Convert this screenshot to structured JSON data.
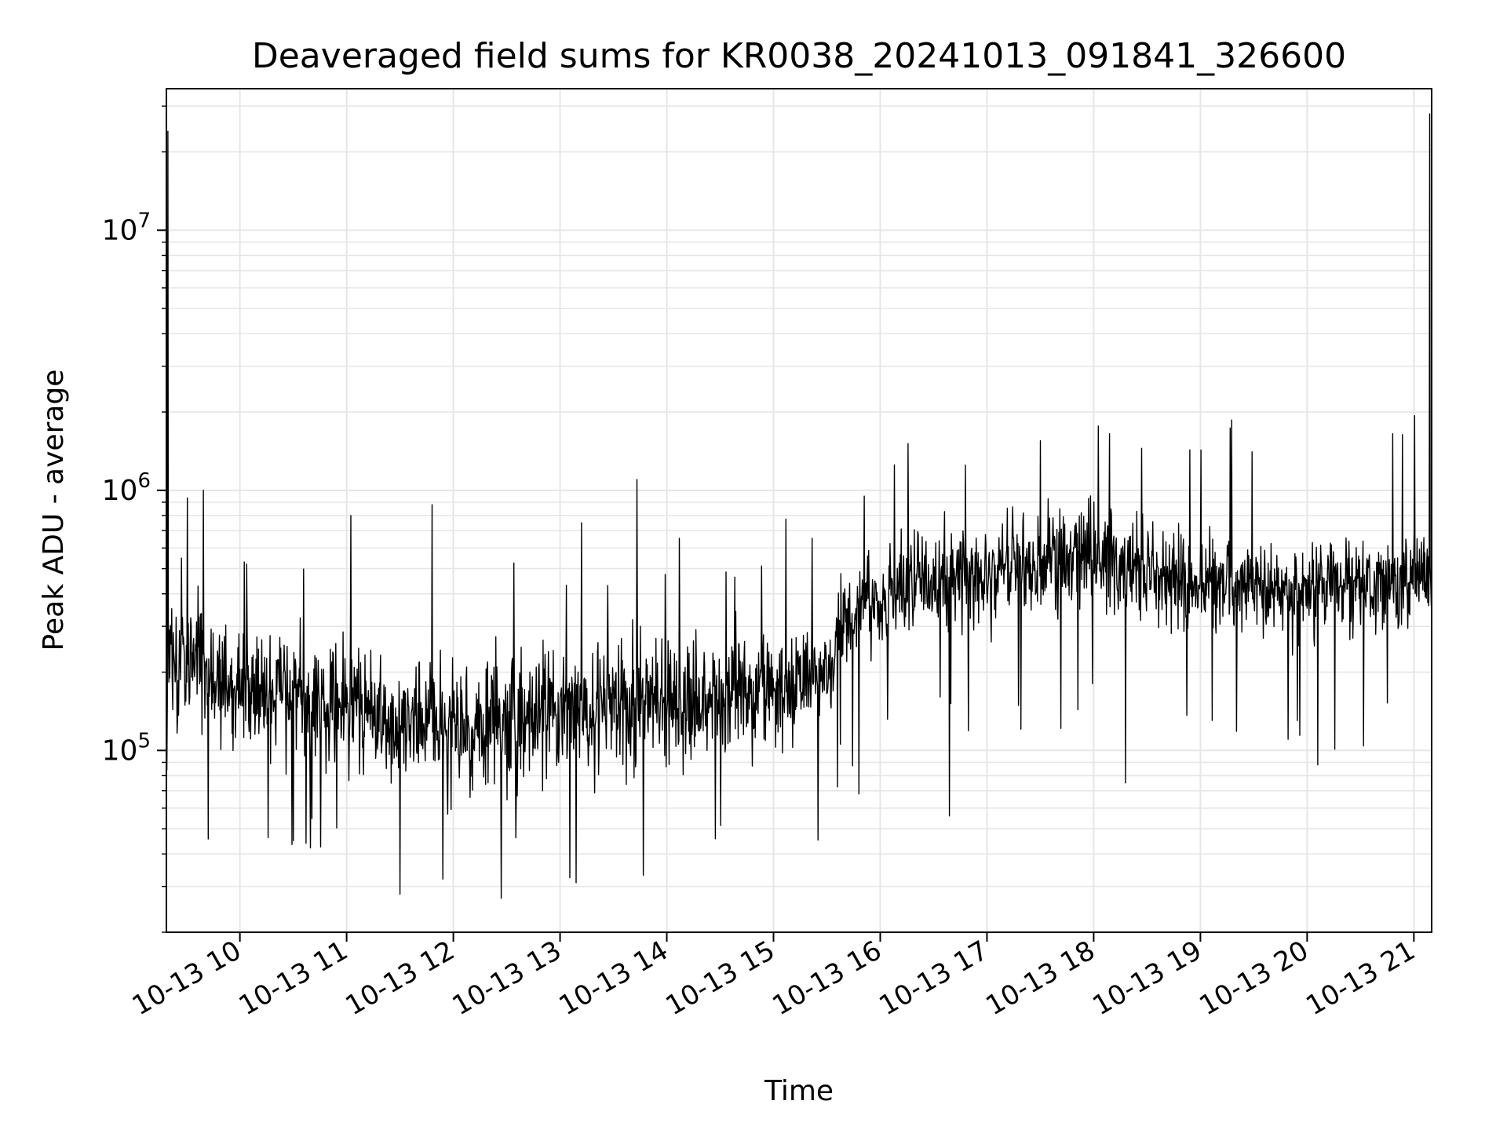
{
  "chart_data": {
    "type": "line",
    "title": "Deaveraged field sums for KR0038_20241013_091841_326600",
    "xlabel": "Time",
    "ylabel": "Peak ADU - average",
    "x_axis": {
      "type": "datetime",
      "range": [
        "2024-10-13T09:18:41",
        "2024-10-13T21:10:00"
      ],
      "tick_labels": [
        "10-13 10",
        "10-13 11",
        "10-13 12",
        "10-13 13",
        "10-13 14",
        "10-13 15",
        "10-13 16",
        "10-13 17",
        "10-13 18",
        "10-13 19",
        "10-13 20",
        "10-13 21"
      ],
      "tick_hours": [
        10,
        11,
        12,
        13,
        14,
        15,
        16,
        17,
        18,
        19,
        20,
        21
      ],
      "label_rotation": "30deg"
    },
    "y_axis": {
      "scale": "log",
      "range": [
        20000,
        35000000
      ],
      "major_ticks": [
        {
          "value": 100000,
          "base": "10",
          "exponent": "5"
        },
        {
          "value": 1000000,
          "base": "10",
          "exponent": "6"
        },
        {
          "value": 10000000,
          "base": "10",
          "exponent": "7"
        }
      ]
    },
    "grid": true,
    "series": [
      {
        "color": "#000000",
        "trend": [
          {
            "hour": 9.31,
            "median": 250000,
            "spread": 0.3
          },
          {
            "hour": 10.0,
            "median": 170000,
            "spread": 0.3
          },
          {
            "hour": 11.0,
            "median": 150000,
            "spread": 0.3
          },
          {
            "hour": 12.0,
            "median": 120000,
            "spread": 0.32
          },
          {
            "hour": 13.0,
            "median": 140000,
            "spread": 0.32
          },
          {
            "hour": 14.0,
            "median": 150000,
            "spread": 0.3
          },
          {
            "hour": 15.0,
            "median": 170000,
            "spread": 0.28
          },
          {
            "hour": 15.55,
            "median": 200000,
            "spread": 0.22
          },
          {
            "hour": 15.6,
            "median": 320000,
            "spread": 0.22
          },
          {
            "hour": 16.0,
            "median": 400000,
            "spread": 0.24
          },
          {
            "hour": 17.0,
            "median": 500000,
            "spread": 0.24
          },
          {
            "hour": 18.0,
            "median": 560000,
            "spread": 0.24
          },
          {
            "hour": 19.0,
            "median": 430000,
            "spread": 0.22
          },
          {
            "hour": 20.0,
            "median": 420000,
            "spread": 0.22
          },
          {
            "hour": 21.16,
            "median": 450000,
            "spread": 0.2
          }
        ],
        "peaks": [
          {
            "hour": 9.325,
            "value": 24000000
          },
          {
            "hour": 9.66,
            "value": 1000000
          },
          {
            "hour": 10.04,
            "value": 530000
          },
          {
            "hour": 11.04,
            "value": 800000
          },
          {
            "hour": 11.8,
            "value": 880000
          },
          {
            "hour": 13.2,
            "value": 750000
          },
          {
            "hour": 13.72,
            "value": 1100000
          },
          {
            "hour": 15.85,
            "value": 950000
          },
          {
            "hour": 16.8,
            "value": 1250000
          },
          {
            "hour": 17.5,
            "value": 1550000
          },
          {
            "hour": 18.15,
            "value": 1650000
          },
          {
            "hour": 18.45,
            "value": 1450000
          },
          {
            "hour": 20.8,
            "value": 1650000
          },
          {
            "hour": 21.15,
            "value": 28000000
          }
        ],
        "dips": [
          {
            "hour": 10.5,
            "value": 45000
          },
          {
            "hour": 11.5,
            "value": 28000
          },
          {
            "hour": 11.9,
            "value": 32000
          },
          {
            "hour": 12.45,
            "value": 27000
          },
          {
            "hour": 13.15,
            "value": 31000
          },
          {
            "hour": 15.8,
            "value": 68000
          },
          {
            "hour": 16.65,
            "value": 56000
          },
          {
            "hour": 18.3,
            "value": 75000
          },
          {
            "hour": 20.1,
            "value": 88000
          }
        ]
      }
    ]
  }
}
